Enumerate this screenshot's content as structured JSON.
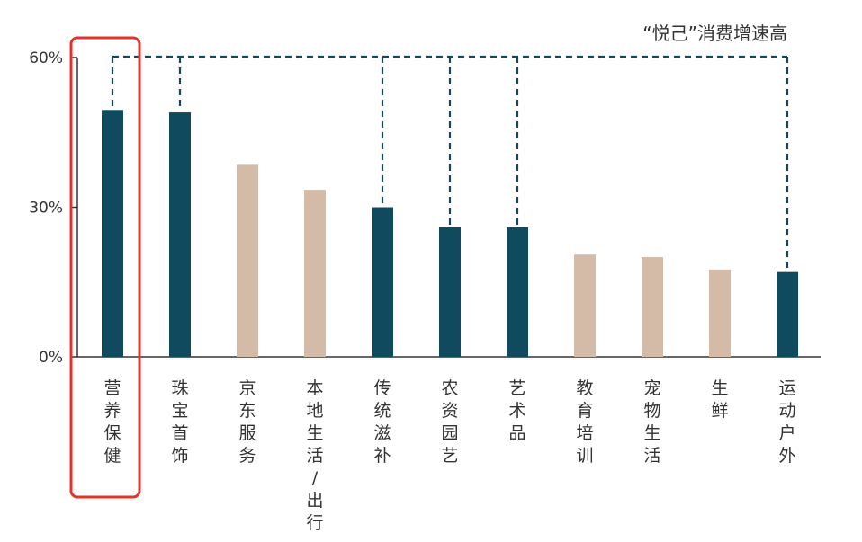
{
  "chart_data": {
    "type": "bar",
    "title": "",
    "xlabel": "",
    "ylabel": "",
    "ylim": [
      0,
      60
    ],
    "yticks": [
      "0%",
      "30%",
      "60%"
    ],
    "ytick_values": [
      0,
      30,
      60
    ],
    "grid": false,
    "categories": [
      "营养保健",
      "珠宝首饰",
      "京东服务",
      "本地生活/出行",
      "传统滋补",
      "农资园艺",
      "艺术品",
      "教育培训",
      "宠物生活",
      "生鲜",
      "运动户外"
    ],
    "values": [
      49.5,
      49.0,
      38.5,
      33.5,
      30.0,
      26.0,
      26.0,
      20.5,
      20.0,
      17.5,
      17.0
    ],
    "highlighted": [
      true,
      true,
      false,
      false,
      true,
      true,
      true,
      false,
      false,
      false,
      true
    ],
    "highlight_color": "#0f4a5e",
    "base_color": "#d4bba8",
    "annotation": "“悦己”消费增速高",
    "callout_box_category": "营养保健",
    "callout_box_color": "#e5332a"
  }
}
